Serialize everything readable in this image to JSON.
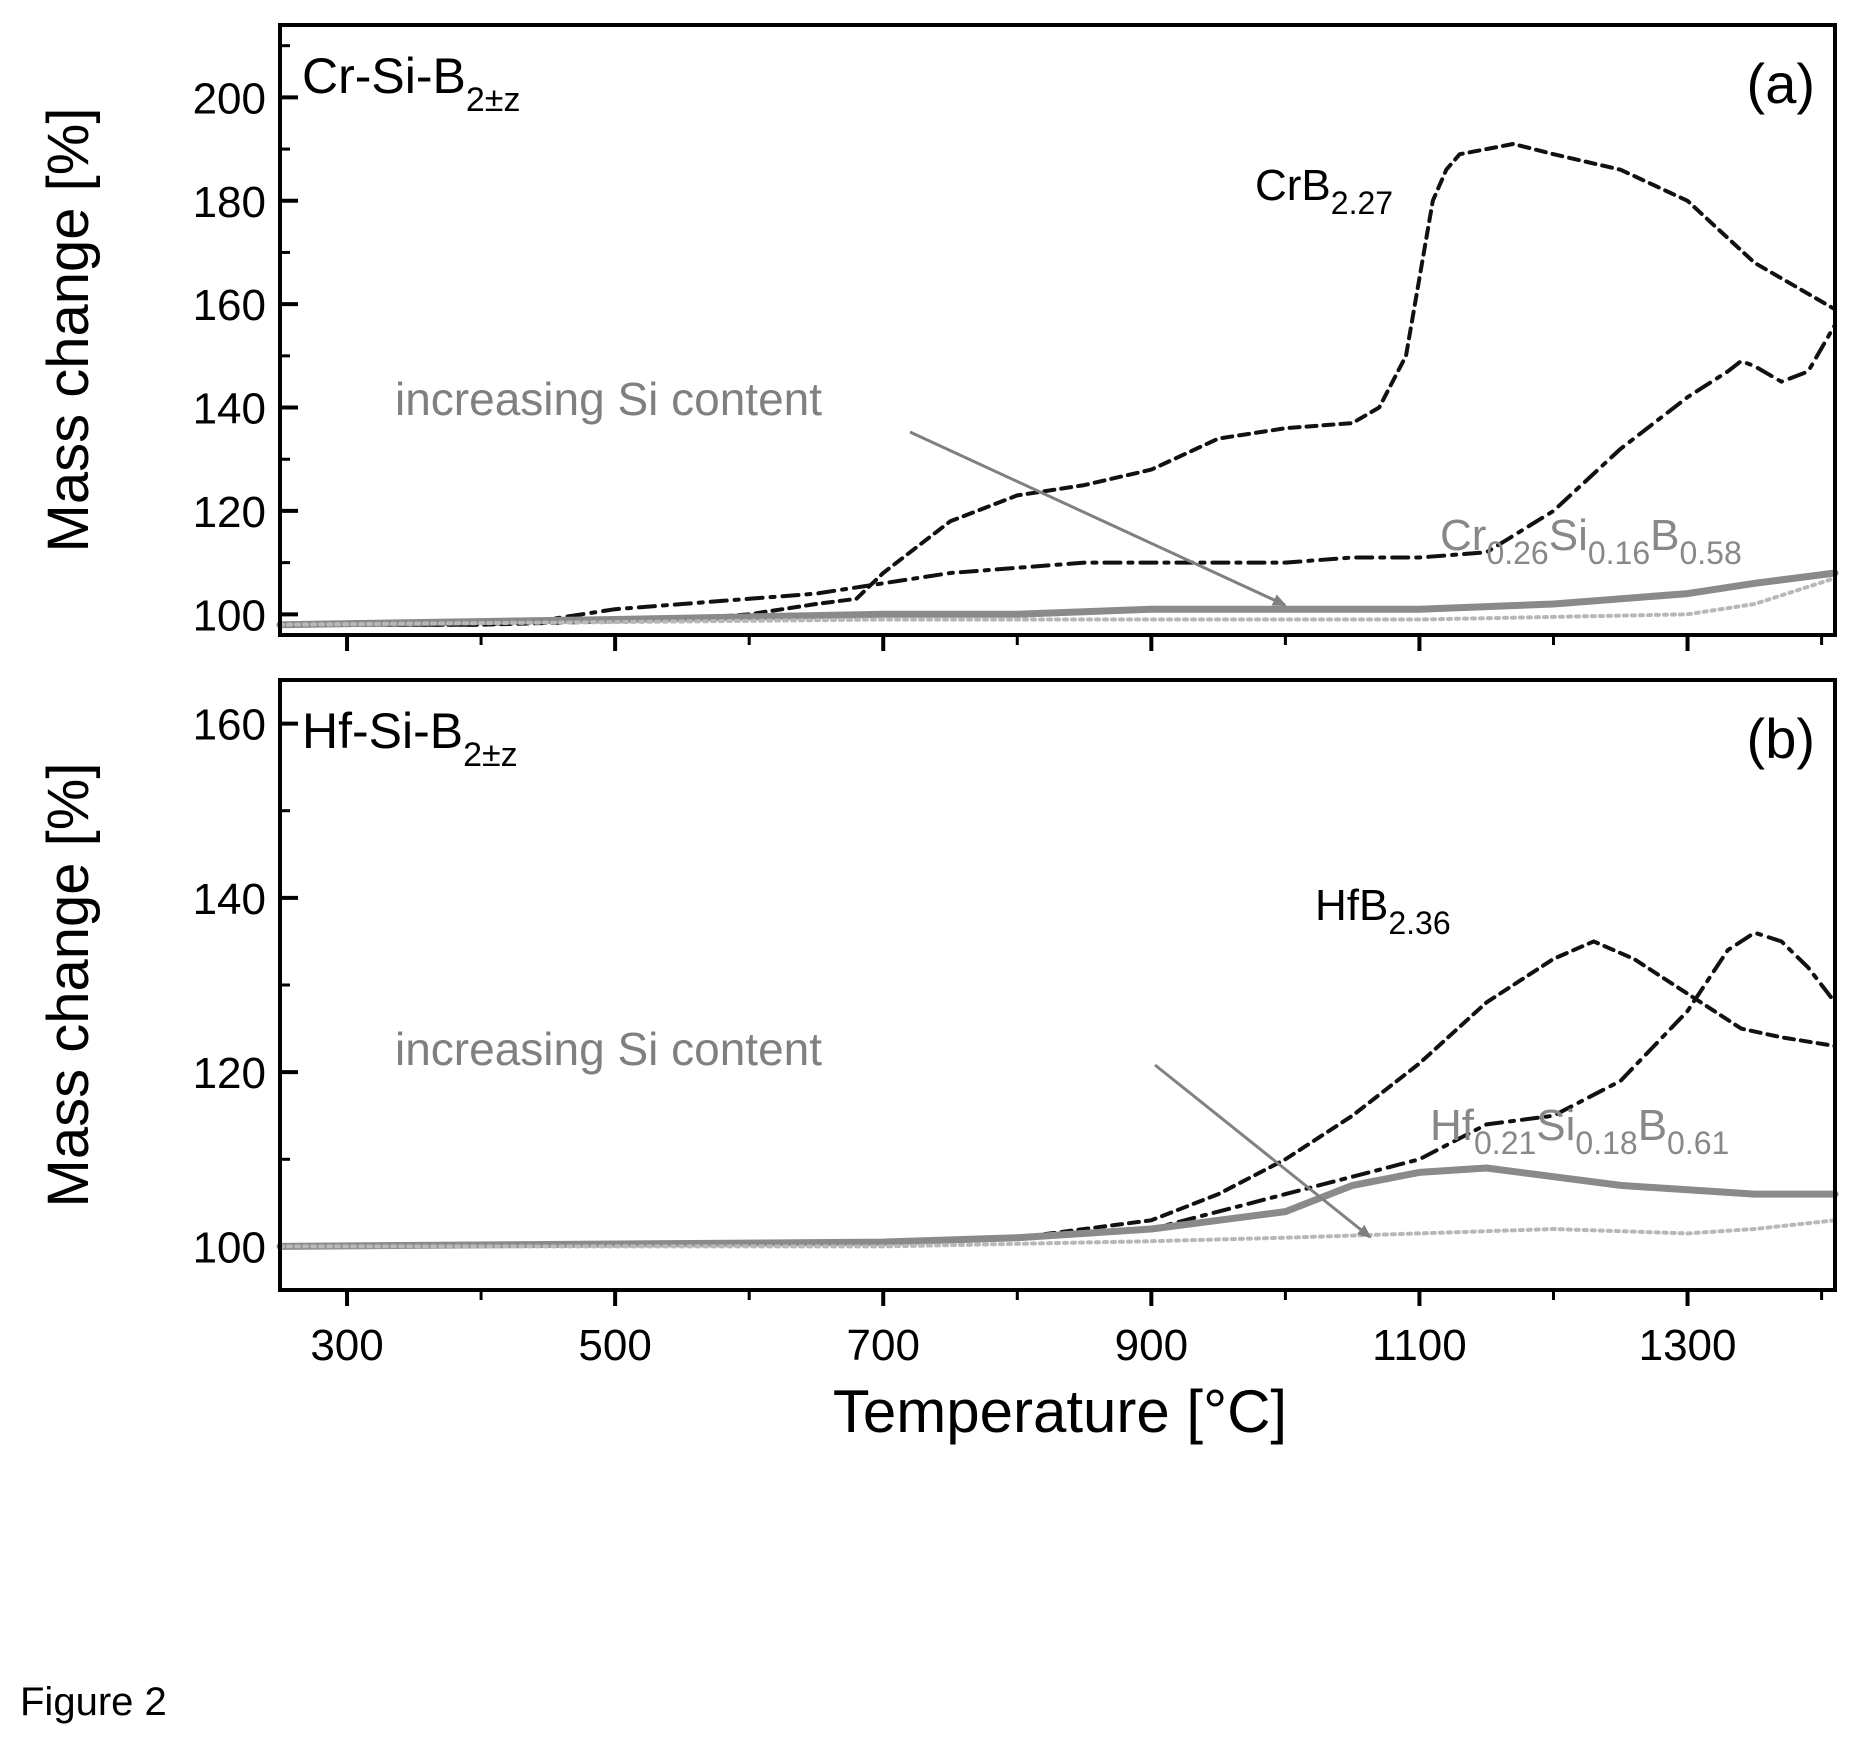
{
  "figure_caption": "Figure 2",
  "colors": {
    "axes": "#000000",
    "dark_curve": "#111111",
    "solid_curve": "#8a8a8a",
    "dotted_curve": "#b8b8b8",
    "annotation": "#808080"
  },
  "chart_data": [
    {
      "type": "line",
      "panel_label": "(a)",
      "title": {
        "main": "Cr-Si-B",
        "sub": "2±z"
      },
      "xlabel": "Temperature [°C]",
      "ylabel": "Mass change [%]",
      "xlim": [
        250,
        1410
      ],
      "ylim": [
        96,
        214
      ],
      "x_ticks": [
        300,
        500,
        700,
        900,
        1100,
        1300
      ],
      "y_ticks": [
        100,
        120,
        140,
        160,
        180,
        200
      ],
      "series": [
        {
          "name": "CrB2.27",
          "style": "dashed",
          "x": [
            250,
            400,
            550,
            600,
            650,
            680,
            700,
            720,
            750,
            800,
            850,
            900,
            950,
            1000,
            1050,
            1070,
            1090,
            1100,
            1110,
            1120,
            1130,
            1150,
            1170,
            1200,
            1250,
            1300,
            1350,
            1410
          ],
          "y": [
            98,
            98,
            99,
            100,
            102,
            103,
            108,
            112,
            118,
            123,
            125,
            128,
            134,
            136,
            137,
            140,
            150,
            165,
            180,
            186,
            189,
            190,
            191,
            189,
            186,
            180,
            168,
            159
          ]
        },
        {
          "series_label": "dash-dot",
          "style": "dashdot",
          "x": [
            250,
            400,
            450,
            500,
            550,
            600,
            650,
            700,
            750,
            800,
            850,
            900,
            950,
            1000,
            1050,
            1100,
            1150,
            1200,
            1250,
            1300,
            1330,
            1340,
            1350,
            1370,
            1390,
            1410
          ],
          "y": [
            98,
            98,
            99,
            101,
            102,
            103,
            104,
            106,
            108,
            109,
            110,
            110,
            110,
            110,
            111,
            111,
            112,
            120,
            132,
            142,
            147,
            149,
            148,
            145,
            147,
            156
          ]
        },
        {
          "name": "Cr0.26Si0.16B0.58",
          "style": "solid",
          "x": [
            250,
            500,
            700,
            800,
            900,
            1000,
            1100,
            1200,
            1300,
            1350,
            1410
          ],
          "y": [
            98,
            99,
            100,
            100,
            101,
            101,
            101,
            102,
            104,
            106,
            108
          ]
        },
        {
          "series_label": "dotted",
          "style": "dotted",
          "x": [
            250,
            500,
            700,
            900,
            1000,
            1100,
            1200,
            1300,
            1350,
            1410
          ],
          "y": [
            98,
            98.5,
            99,
            99,
            99,
            99,
            99.5,
            100,
            102,
            107
          ]
        }
      ],
      "annotations": [
        {
          "text": "increasing Si content"
        },
        {
          "text_main": "CrB",
          "text_sub": "2.27"
        },
        {
          "parts": [
            "Cr",
            "0.26",
            "Si",
            "0.16",
            "B",
            "0.58"
          ]
        }
      ]
    },
    {
      "type": "line",
      "panel_label": "(b)",
      "title": {
        "main": "Hf-Si-B",
        "sub": "2±z"
      },
      "xlabel": "Temperature [°C]",
      "ylabel": "Mass change [%]",
      "xlim": [
        250,
        1410
      ],
      "ylim": [
        95,
        165
      ],
      "x_ticks": [
        300,
        500,
        700,
        900,
        1100,
        1300
      ],
      "y_ticks": [
        100,
        120,
        140,
        160
      ],
      "series": [
        {
          "name": "HfB2.36",
          "style": "dashed",
          "x": [
            250,
            700,
            800,
            850,
            900,
            950,
            1000,
            1050,
            1100,
            1150,
            1200,
            1230,
            1260,
            1300,
            1340,
            1370,
            1410
          ],
          "y": [
            100,
            100.5,
            101,
            102,
            103,
            106,
            110,
            115,
            121,
            128,
            133,
            135,
            133,
            129,
            125,
            124,
            123
          ]
        },
        {
          "series_label": "dash-dot",
          "style": "dashdot",
          "x": [
            250,
            700,
            800,
            900,
            950,
            1000,
            1050,
            1100,
            1150,
            1200,
            1250,
            1300,
            1330,
            1350,
            1370,
            1390,
            1410
          ],
          "y": [
            100,
            100.5,
            101,
            102,
            104,
            106,
            108,
            110,
            114,
            115,
            119,
            127,
            134,
            136,
            135,
            132,
            128
          ]
        },
        {
          "name": "Hf0.21Si0.18B0.61",
          "style": "solid",
          "x": [
            250,
            700,
            800,
            900,
            950,
            1000,
            1050,
            1100,
            1150,
            1200,
            1250,
            1300,
            1350,
            1410
          ],
          "y": [
            100,
            100.5,
            101,
            102,
            103,
            104,
            107,
            108.5,
            109,
            108,
            107,
            106.5,
            106,
            106
          ]
        },
        {
          "series_label": "dotted",
          "style": "dotted",
          "x": [
            250,
            700,
            800,
            900,
            1000,
            1100,
            1200,
            1300,
            1350,
            1410
          ],
          "y": [
            100,
            100,
            100.3,
            100.6,
            101,
            101.5,
            102,
            101.5,
            102,
            103
          ]
        }
      ],
      "annotations": [
        {
          "text": "increasing Si content"
        },
        {
          "text_main": "HfB",
          "text_sub": "2.36"
        },
        {
          "parts": [
            "Hf",
            "0.21",
            "Si",
            "0.18",
            "B",
            "0.61"
          ]
        }
      ]
    }
  ]
}
